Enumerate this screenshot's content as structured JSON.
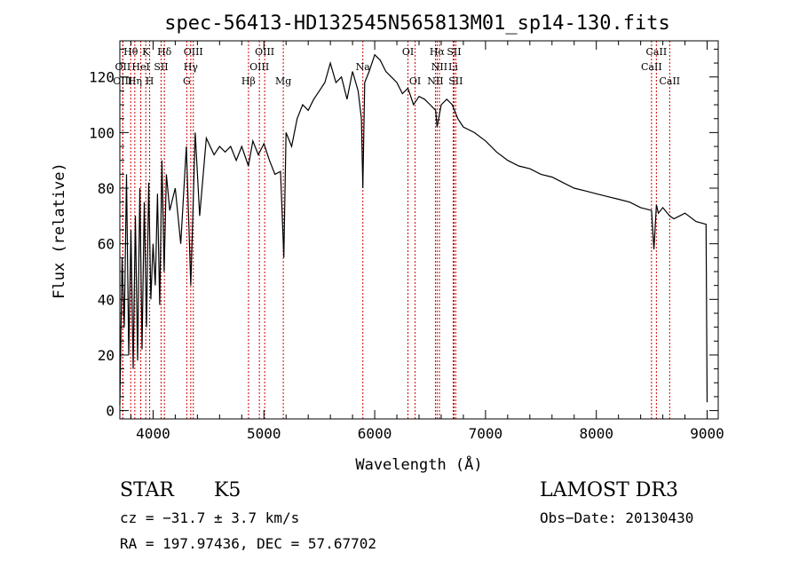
{
  "chart_data": {
    "type": "line",
    "title": "spec-56413-HD132545N565813M01_sp14-130.fits",
    "xlabel": "Wavelength (Å)",
    "ylabel": "Flux (relative)",
    "xlim": [
      3700,
      9100
    ],
    "ylim": [
      -3,
      133
    ],
    "x_ticks": [
      4000,
      5000,
      6000,
      7000,
      8000,
      9000
    ],
    "y_ticks": [
      0,
      20,
      40,
      60,
      80,
      100,
      120
    ],
    "series": [
      {
        "name": "spectrum",
        "x": [
          3700,
          3720,
          3740,
          3760,
          3780,
          3800,
          3820,
          3840,
          3860,
          3880,
          3900,
          3920,
          3940,
          3960,
          3980,
          4000,
          4020,
          4040,
          4060,
          4080,
          4100,
          4120,
          4150,
          4200,
          4250,
          4300,
          4340,
          4380,
          4420,
          4480,
          4550,
          4600,
          4650,
          4700,
          4750,
          4800,
          4860,
          4900,
          4950,
          5000,
          5050,
          5100,
          5150,
          5180,
          5200,
          5250,
          5300,
          5350,
          5400,
          5450,
          5500,
          5550,
          5600,
          5650,
          5700,
          5750,
          5800,
          5850,
          5880,
          5893,
          5910,
          5950,
          6000,
          6050,
          6100,
          6150,
          6200,
          6250,
          6300,
          6350,
          6400,
          6450,
          6500,
          6550,
          6563,
          6600,
          6650,
          6700,
          6750,
          6800,
          6900,
          7000,
          7100,
          7200,
          7300,
          7400,
          7500,
          7600,
          7700,
          7800,
          7900,
          8000,
          8100,
          8200,
          8300,
          8400,
          8498,
          8520,
          8542,
          8560,
          8600,
          8662,
          8700,
          8800,
          8900,
          8990,
          9000
        ],
        "y": [
          2,
          55,
          30,
          85,
          20,
          65,
          15,
          70,
          18,
          80,
          22,
          75,
          30,
          82,
          40,
          60,
          45,
          78,
          38,
          90,
          50,
          85,
          72,
          80,
          60,
          95,
          45,
          100,
          70,
          98,
          92,
          95,
          93,
          95,
          90,
          95,
          88,
          97,
          92,
          96,
          90,
          85,
          86,
          55,
          100,
          95,
          105,
          110,
          108,
          112,
          115,
          118,
          125,
          118,
          120,
          112,
          122,
          115,
          105,
          80,
          118,
          122,
          128,
          126,
          122,
          120,
          118,
          114,
          116,
          110,
          113,
          112,
          110,
          108,
          102,
          110,
          112,
          110,
          105,
          102,
          100,
          97,
          93,
          90,
          88,
          87,
          85,
          84,
          82,
          80,
          79,
          78,
          77,
          76,
          75,
          73,
          72,
          58,
          74,
          71,
          73,
          70,
          69,
          71,
          68,
          67,
          3
        ]
      }
    ],
    "lines": [
      {
        "name": "Hθ",
        "wl": 3798,
        "row": 0
      },
      {
        "name": "OII",
        "wl": 3727,
        "row": 1
      },
      {
        "name": "OIII",
        "wl": 3726,
        "row": 2
      },
      {
        "name": "K",
        "wl": 3934,
        "row": 0
      },
      {
        "name": "Hη",
        "wl": 3835,
        "row": 2
      },
      {
        "name": "HeI",
        "wl": 3889,
        "row": 1
      },
      {
        "name": "Hδ",
        "wl": 4102,
        "row": 0
      },
      {
        "name": "SII",
        "wl": 4072,
        "row": 1
      },
      {
        "name": "H",
        "wl": 3969,
        "row": 2
      },
      {
        "name": "OIII",
        "wl": 4363,
        "row": 0
      },
      {
        "name": "Hγ",
        "wl": 4340,
        "row": 1
      },
      {
        "name": "G",
        "wl": 4304,
        "row": 2
      },
      {
        "name": "Hβ",
        "wl": 4861,
        "row": 2
      },
      {
        "name": "OIII",
        "wl": 5007,
        "row": 0
      },
      {
        "name": "OIII",
        "wl": 4959,
        "row": 1
      },
      {
        "name": "Mg",
        "wl": 5175,
        "row": 2
      },
      {
        "name": "Na",
        "wl": 5893,
        "row": 1
      },
      {
        "name": "OI",
        "wl": 6300,
        "row": 0
      },
      {
        "name": "OI",
        "wl": 6364,
        "row": 2
      },
      {
        "name": "Hα",
        "wl": 6563,
        "row": 0
      },
      {
        "name": "SII",
        "wl": 6716,
        "row": 0
      },
      {
        "name": "NII",
        "wl": 6584,
        "row": 1
      },
      {
        "name": "Li",
        "wl": 6708,
        "row": 1
      },
      {
        "name": "NII",
        "wl": 6548,
        "row": 2
      },
      {
        "name": "SII",
        "wl": 6731,
        "row": 2
      },
      {
        "name": "CaII",
        "wl": 8542,
        "row": 0
      },
      {
        "name": "CaII",
        "wl": 8498,
        "row": 1
      },
      {
        "name": "CaII",
        "wl": 8662,
        "row": 2
      }
    ]
  },
  "info": {
    "object_type": "STAR",
    "subclass": "K5",
    "survey": "LAMOST DR3",
    "cz": "cz = −31.7 ± 3.7 km/s",
    "obs_date": "Obs−Date: 20130430",
    "coords": "RA = 197.97436, DEC =  57.67702"
  }
}
